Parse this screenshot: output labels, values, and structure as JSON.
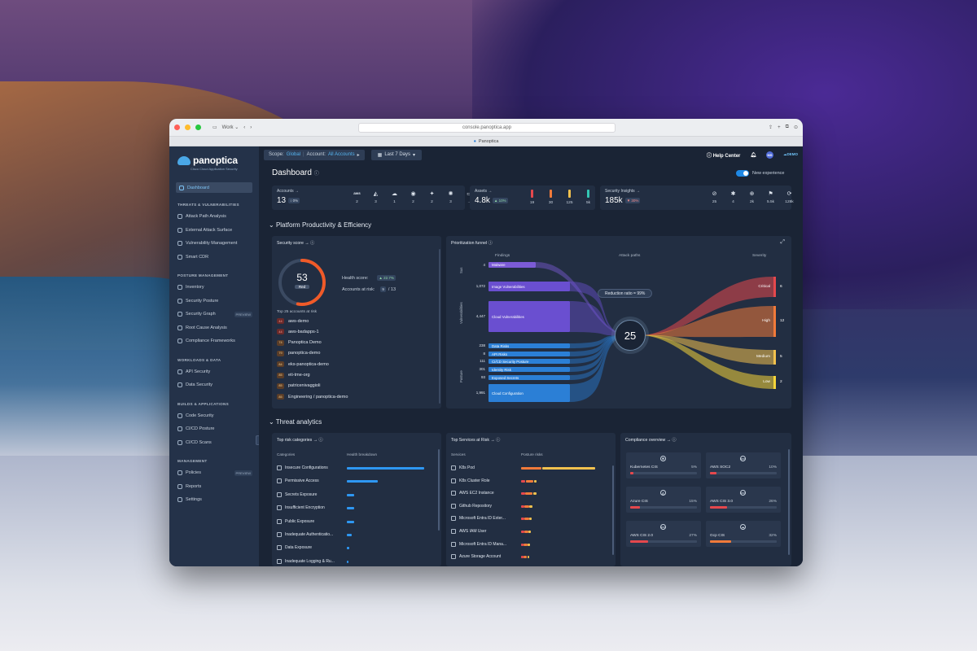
{
  "browser": {
    "workspace": "Work",
    "url": "console.panoptica.app",
    "tab_title": "Panoptica"
  },
  "sidebar": {
    "logo": "panoptica",
    "logo_sub": "Cisco Cloud Application Security",
    "dashboard": "Dashboard",
    "sections": [
      {
        "title": "THREATS & VULNERABILITIES",
        "items": [
          {
            "label": "Attack Path Analysis",
            "preview": ""
          },
          {
            "label": "External Attack Surface",
            "preview": ""
          },
          {
            "label": "Vulnerability Management",
            "preview": ""
          },
          {
            "label": "Smart CDR",
            "preview": ""
          }
        ]
      },
      {
        "title": "POSTURE MANAGEMENT",
        "items": [
          {
            "label": "Inventory",
            "preview": ""
          },
          {
            "label": "Security Posture",
            "preview": ""
          },
          {
            "label": "Security Graph",
            "preview": "PREVIEW"
          },
          {
            "label": "Root Cause Analysis",
            "preview": ""
          },
          {
            "label": "Compliance Frameworks",
            "preview": ""
          }
        ]
      },
      {
        "title": "WORKLOADS & DATA",
        "items": [
          {
            "label": "API Security",
            "preview": ""
          },
          {
            "label": "Data Security",
            "preview": ""
          }
        ]
      },
      {
        "title": "BUILDS & APPLICATIONS",
        "items": [
          {
            "label": "Code Security",
            "preview": ""
          },
          {
            "label": "CI/CD Posture",
            "preview": ""
          },
          {
            "label": "CI/CD Scans",
            "preview": ""
          }
        ]
      },
      {
        "title": "MANAGEMENT",
        "items": [
          {
            "label": "Policies",
            "preview": "PREVIEW"
          },
          {
            "label": "Reports",
            "preview": ""
          },
          {
            "label": "Settings",
            "preview": ""
          }
        ]
      }
    ]
  },
  "topbar": {
    "scope_label": "Scope:",
    "scope_value": "Global",
    "account_label": "Account:",
    "account_value": "All Accounts",
    "range": "Last 7 Days",
    "help": "Help Center",
    "avatar": "MS",
    "demo": "DEMO"
  },
  "page": {
    "title": "Dashboard",
    "toggle_label": "New experience"
  },
  "stats": {
    "accounts": {
      "label": "Accounts",
      "value": "13",
      "chip": "0%",
      "icons": [
        {
          "icon": "aws-icon",
          "glyph": "aws",
          "count": "2"
        },
        {
          "icon": "azure-icon",
          "glyph": "◭",
          "count": "3"
        },
        {
          "icon": "gcp-icon",
          "glyph": "☁",
          "count": "1"
        },
        {
          "icon": "github-icon",
          "glyph": "◉",
          "count": "2"
        },
        {
          "icon": "gitlab-icon",
          "glyph": "✦",
          "count": "2"
        },
        {
          "icon": "kubernetes-icon",
          "glyph": "✺",
          "count": "3"
        },
        {
          "icon": "more-icon",
          "glyph": "▭",
          "count": "..."
        }
      ]
    },
    "assets": {
      "label": "Assets",
      "value": "4.8k",
      "chip": "10%",
      "icons": [
        {
          "icon": "critical-bar-icon",
          "color": "#e5484d",
          "count": "19"
        },
        {
          "icon": "high-bar-icon",
          "color": "#f07a3a",
          "count": "30"
        },
        {
          "icon": "medium-bar-icon",
          "color": "#f2c14e",
          "count": "125"
        },
        {
          "icon": "low-bar-icon",
          "color": "#33c6b3",
          "count": "5k"
        }
      ]
    },
    "insights": {
      "label": "Security Insights",
      "value": "185k",
      "chip": "30%",
      "icons": [
        {
          "icon": "search-shield-icon",
          "glyph": "⊘",
          "count": "25"
        },
        {
          "icon": "bug-icon",
          "glyph": "✱",
          "count": "4"
        },
        {
          "icon": "target-icon",
          "glyph": "⊕",
          "count": "2k"
        },
        {
          "icon": "flag-icon",
          "glyph": "⚑",
          "count": "5.5k"
        },
        {
          "icon": "sync-icon",
          "glyph": "⟳",
          "count": "128k"
        }
      ]
    }
  },
  "sections": {
    "productivity": "Platform Productivity & Efficiency",
    "threat": "Threat analytics"
  },
  "security_score": {
    "title": "Security score",
    "score": "53",
    "score_fraction": 0.53,
    "badge": "Red",
    "health_label": "Health score:",
    "health_value": "22.7%",
    "risk_label": "Accounts at risk:",
    "risk_value": "9",
    "risk_total": "/ 13",
    "top_label": "Top 25 accounts at risk",
    "accounts": [
      {
        "score": "44",
        "name": "aws-demo"
      },
      {
        "score": "44",
        "name": "aws-badapps-1"
      },
      {
        "score": "74",
        "name": "Panoptica Demo"
      },
      {
        "score": "79",
        "name": "panoptica-demo"
      },
      {
        "score": "84",
        "name": "eks-panoptica-demo"
      },
      {
        "score": "85",
        "name": "eti-tme-org"
      },
      {
        "score": "85",
        "name": "patricenivaggioli"
      },
      {
        "score": "85",
        "name": "Engineering / panoptica-demo"
      }
    ]
  },
  "funnel": {
    "title": "Prioritization funnel",
    "head_findings": "Findings",
    "head_paths": "Attack paths",
    "head_severity": "Severity",
    "label_sus": "Sus",
    "label_vuln": "Vulnerabilities",
    "label_posture": "Posture",
    "ratio": "Reduction ratio = 99%",
    "center": "25",
    "findings": [
      {
        "count": "4",
        "label": "Malware",
        "color": "#7c5bd6"
      },
      {
        "count": "1,072",
        "label": "Image Vulnerabilities",
        "color": "#6a4fd0"
      },
      {
        "count": "4,447",
        "label": "Cloud Vulnerabilities",
        "color": "#6a4fd0"
      },
      {
        "count": "238",
        "label": "Data Risks",
        "color": "#2b7fd6"
      },
      {
        "count": "8",
        "label": "API Risks",
        "color": "#2b7fd6"
      },
      {
        "count": "111",
        "label": "CI/CD Security Posture",
        "color": "#2b7fd6"
      },
      {
        "count": "301",
        "label": "Identity Risk",
        "color": "#2b7fd6"
      },
      {
        "count": "93",
        "label": "Exposed Secrets",
        "color": "#2b7fd6"
      },
      {
        "count": "1,991",
        "label": "Cloud Configuration",
        "color": "#2b7fd6"
      }
    ],
    "severity": [
      {
        "label": "Critical",
        "count": "6",
        "color": "#e5484d"
      },
      {
        "label": "High",
        "count": "12",
        "color": "#f07a3a"
      },
      {
        "label": "Medium",
        "count": "5",
        "color": "#f2c14e"
      },
      {
        "label": "Low",
        "count": "2",
        "color": "#f5d53a"
      }
    ]
  },
  "risk_categories": {
    "title": "Top risk categories",
    "col1": "Categories",
    "col2": "Health breakdown",
    "rows": [
      {
        "label": "Insecure Configurations",
        "value": 0.95
      },
      {
        "label": "Permissive Access",
        "value": 0.38
      },
      {
        "label": "Secrets Exposure",
        "value": 0.09
      },
      {
        "label": "Insufficient Encryption",
        "value": 0.09
      },
      {
        "label": "Public Exposure",
        "value": 0.09
      },
      {
        "label": "Inadequate Authenticatio...",
        "value": 0.06
      },
      {
        "label": "Data Exposure",
        "value": 0.03
      },
      {
        "label": "Inadequate Logging & Ru...",
        "value": 0.02
      }
    ]
  },
  "services": {
    "title": "Top Services at Risk",
    "col1": "Services",
    "col2": "Posture risks",
    "rows": [
      {
        "label": "K8s Pod",
        "segments": [
          {
            "v": 0.28,
            "c": "#f07a3a"
          },
          {
            "v": 0.72,
            "c": "#f2c14e"
          }
        ]
      },
      {
        "label": "K8s Cluster Role",
        "segments": [
          {
            "v": 0.06,
            "c": "#e5484d"
          },
          {
            "v": 0.1,
            "c": "#f07a3a"
          },
          {
            "v": 0.04,
            "c": "#f2c14e"
          }
        ]
      },
      {
        "label": "AWS EC2 Instance",
        "segments": [
          {
            "v": 0.05,
            "c": "#e5484d"
          },
          {
            "v": 0.1,
            "c": "#f07a3a"
          },
          {
            "v": 0.05,
            "c": "#f2c14e"
          }
        ]
      },
      {
        "label": "Github Repository",
        "segments": [
          {
            "v": 0.04,
            "c": "#e5484d"
          },
          {
            "v": 0.06,
            "c": "#f07a3a"
          },
          {
            "v": 0.04,
            "c": "#f2c14e"
          }
        ]
      },
      {
        "label": "Microsoft Entra ID Exter...",
        "segments": [
          {
            "v": 0.04,
            "c": "#e5484d"
          },
          {
            "v": 0.06,
            "c": "#f07a3a"
          },
          {
            "v": 0.03,
            "c": "#f2c14e"
          }
        ]
      },
      {
        "label": "AWS IAM User",
        "segments": [
          {
            "v": 0.04,
            "c": "#e5484d"
          },
          {
            "v": 0.05,
            "c": "#f07a3a"
          },
          {
            "v": 0.03,
            "c": "#f2c14e"
          }
        ]
      },
      {
        "label": "Microsoft Entra ID Mana...",
        "segments": [
          {
            "v": 0.03,
            "c": "#e5484d"
          },
          {
            "v": 0.05,
            "c": "#f07a3a"
          },
          {
            "v": 0.03,
            "c": "#f2c14e"
          }
        ]
      },
      {
        "label": "Azure Storage Account",
        "segments": [
          {
            "v": 0.03,
            "c": "#e5484d"
          },
          {
            "v": 0.04,
            "c": "#f07a3a"
          },
          {
            "v": 0.03,
            "c": "#f2c14e"
          }
        ]
      }
    ]
  },
  "compliance": {
    "title": "Compliance overview",
    "tiles": [
      {
        "name": "Kubernetes CIS",
        "pct": "5%",
        "value": 0.05,
        "color": "#e5484d",
        "glyph": "✺"
      },
      {
        "name": "AWS SOC2",
        "pct": "10%",
        "value": 0.1,
        "color": "#e5484d",
        "glyph": "aws"
      },
      {
        "name": "Azure CIS",
        "pct": "15%",
        "value": 0.15,
        "color": "#e5484d",
        "glyph": "◭"
      },
      {
        "name": "AWS CIS 3.0",
        "pct": "26%",
        "value": 0.26,
        "color": "#e5484d",
        "glyph": "aws"
      },
      {
        "name": "AWS CIS 2.0",
        "pct": "27%",
        "value": 0.27,
        "color": "#e5484d",
        "glyph": "aws"
      },
      {
        "name": "Gcp CIS",
        "pct": "32%",
        "value": 0.32,
        "color": "#f07a3a",
        "glyph": "☁"
      }
    ]
  }
}
